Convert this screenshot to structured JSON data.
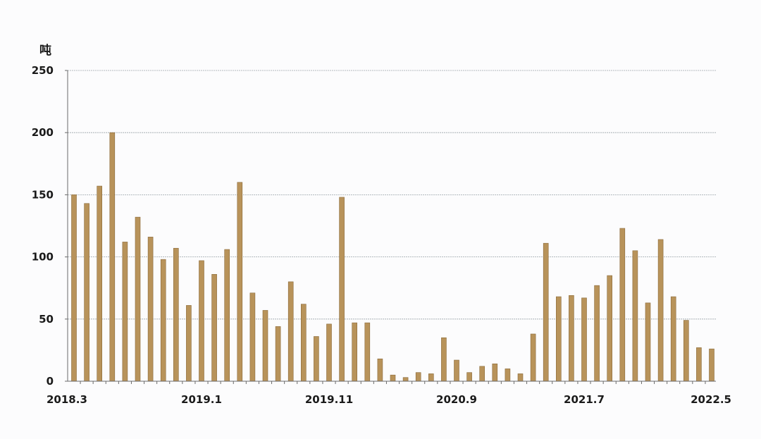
{
  "chart_data": {
    "type": "bar",
    "unit_label": "吨",
    "ylim": [
      0,
      250
    ],
    "y_ticks": [
      "0",
      "50",
      "100",
      "150",
      "200",
      "250"
    ],
    "x_tick_labels": [
      "2018.3",
      "2019.1",
      "2019.11",
      "2020.9",
      "2021.7",
      "2022.5"
    ],
    "grid": true,
    "bar_color": "#b8935a",
    "bar_edge_color": "#8a6a3a",
    "categories": [
      "2018.3",
      "2018.4",
      "2018.5",
      "2018.6",
      "2018.7",
      "2018.8",
      "2018.9",
      "2018.10",
      "2018.11",
      "2018.12",
      "2019.1",
      "2019.2",
      "2019.3",
      "2019.4",
      "2019.5",
      "2019.6",
      "2019.7",
      "2019.8",
      "2019.9",
      "2019.10",
      "2019.11",
      "2019.12",
      "2020.1",
      "2020.2",
      "2020.3",
      "2020.4",
      "2020.5",
      "2020.6",
      "2020.7",
      "2020.8",
      "2020.9",
      "2020.10",
      "2020.11",
      "2020.12",
      "2021.1",
      "2021.2",
      "2021.3",
      "2021.4",
      "2021.5",
      "2021.6",
      "2021.7",
      "2021.8",
      "2021.9",
      "2021.10",
      "2021.11",
      "2021.12",
      "2022.1",
      "2022.2",
      "2022.3",
      "2022.4",
      "2022.5"
    ],
    "values": [
      150,
      143,
      157,
      200,
      112,
      132,
      116,
      98,
      107,
      61,
      97,
      86,
      106,
      160,
      71,
      57,
      44,
      80,
      62,
      36,
      46,
      148,
      47,
      47,
      18,
      5,
      3,
      7,
      6,
      35,
      17,
      7,
      12,
      14,
      10,
      6,
      38,
      111,
      68,
      69,
      67,
      77,
      85,
      123,
      105,
      63,
      114,
      68,
      49,
      27,
      26
    ]
  }
}
